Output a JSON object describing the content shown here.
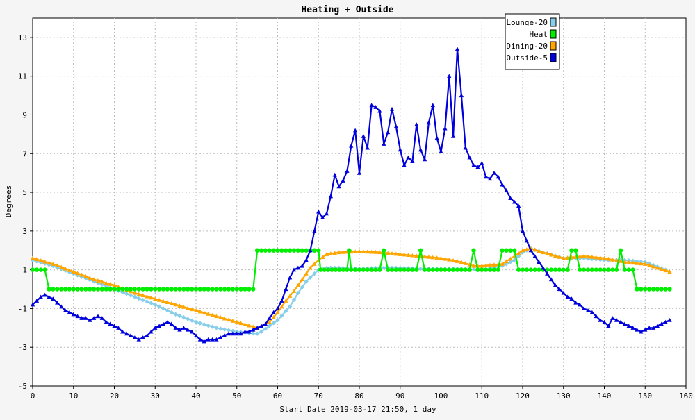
{
  "chart_data": {
    "type": "line",
    "title": "Heating + Outside",
    "xlabel": "Start Date 2019-03-17 21:50, 1 day",
    "ylabel": "Degrees",
    "xlim": [
      0,
      160
    ],
    "ylim": [
      -5,
      14
    ],
    "x_ticks": [
      0,
      10,
      20,
      30,
      40,
      50,
      60,
      70,
      80,
      90,
      100,
      110,
      120,
      130,
      140,
      150,
      160
    ],
    "y_ticks": [
      -5,
      -3,
      -1,
      1,
      3,
      5,
      7,
      9,
      11,
      13
    ],
    "grid": true,
    "legend_position": "top-right",
    "series": [
      {
        "name": "Lounge-20",
        "color": "#87ceeb",
        "marker": "diamond",
        "points": [
          [
            0,
            1.5
          ],
          [
            5,
            1.2
          ],
          [
            10,
            0.8
          ],
          [
            15,
            0.4
          ],
          [
            20,
            0
          ],
          [
            25,
            -0.4
          ],
          [
            30,
            -0.8
          ],
          [
            35,
            -1.3
          ],
          [
            40,
            -1.7
          ],
          [
            45,
            -2
          ],
          [
            50,
            -2.2
          ],
          [
            55,
            -2.3
          ],
          [
            56,
            -2.2
          ],
          [
            60,
            -1.6
          ],
          [
            63,
            -0.9
          ],
          [
            65,
            -0.2
          ],
          [
            67,
            0.4
          ],
          [
            69,
            0.8
          ],
          [
            70,
            1
          ],
          [
            72,
            1.1
          ],
          [
            75,
            1.1
          ],
          [
            80,
            1.05
          ],
          [
            85,
            1.1
          ],
          [
            90,
            1.1
          ],
          [
            95,
            1.05
          ],
          [
            100,
            1.05
          ],
          [
            105,
            1.05
          ],
          [
            110,
            1
          ],
          [
            115,
            1.2
          ],
          [
            118,
            1.5
          ],
          [
            120,
            1.9
          ],
          [
            122,
            2.1
          ],
          [
            125,
            1.9
          ],
          [
            130,
            1.6
          ],
          [
            135,
            1.6
          ],
          [
            140,
            1.5
          ],
          [
            145,
            1.5
          ],
          [
            150,
            1.4
          ],
          [
            155,
            1
          ]
        ]
      },
      {
        "name": "Heat",
        "color": "#00ee00",
        "marker": "circle",
        "points": [
          [
            0,
            1
          ],
          [
            3,
            1
          ],
          [
            4,
            0
          ],
          [
            54,
            0
          ],
          [
            55,
            2
          ],
          [
            70,
            2
          ],
          [
            70.5,
            1
          ],
          [
            77,
            1
          ],
          [
            77.5,
            2
          ],
          [
            78,
            1
          ],
          [
            85,
            1
          ],
          [
            86,
            2
          ],
          [
            87,
            1
          ],
          [
            94,
            1
          ],
          [
            95,
            2
          ],
          [
            96,
            1
          ],
          [
            107,
            1
          ],
          [
            108,
            2
          ],
          [
            109,
            1
          ],
          [
            114,
            1
          ],
          [
            115,
            2
          ],
          [
            118,
            2
          ],
          [
            119,
            1
          ],
          [
            131,
            1
          ],
          [
            132,
            2
          ],
          [
            133,
            2
          ],
          [
            134,
            1
          ],
          [
            143,
            1
          ],
          [
            144,
            2
          ],
          [
            145,
            1
          ],
          [
            147,
            1
          ],
          [
            148,
            0
          ],
          [
            156,
            0
          ]
        ]
      },
      {
        "name": "Dining-20",
        "color": "#ffa500",
        "marker": "triangle",
        "points": [
          [
            0,
            1.6
          ],
          [
            5,
            1.3
          ],
          [
            10,
            0.9
          ],
          [
            15,
            0.5
          ],
          [
            20,
            0.2
          ],
          [
            25,
            -0.2
          ],
          [
            30,
            -0.5
          ],
          [
            35,
            -0.8
          ],
          [
            40,
            -1.1
          ],
          [
            45,
            -1.4
          ],
          [
            50,
            -1.7
          ],
          [
            55,
            -2
          ],
          [
            58,
            -1.7
          ],
          [
            60,
            -1.2
          ],
          [
            62,
            -0.6
          ],
          [
            64,
            -0.1
          ],
          [
            66,
            0.5
          ],
          [
            68,
            1.1
          ],
          [
            70,
            1.5
          ],
          [
            72,
            1.8
          ],
          [
            75,
            1.9
          ],
          [
            80,
            1.95
          ],
          [
            85,
            1.9
          ],
          [
            90,
            1.8
          ],
          [
            95,
            1.7
          ],
          [
            100,
            1.6
          ],
          [
            105,
            1.4
          ],
          [
            108,
            1.2
          ],
          [
            110,
            1.2
          ],
          [
            115,
            1.3
          ],
          [
            118,
            1.7
          ],
          [
            120,
            2
          ],
          [
            122,
            2.1
          ],
          [
            125,
            1.9
          ],
          [
            130,
            1.6
          ],
          [
            135,
            1.7
          ],
          [
            140,
            1.6
          ],
          [
            145,
            1.4
          ],
          [
            150,
            1.3
          ],
          [
            156,
            0.9
          ]
        ]
      },
      {
        "name": "Outside-5",
        "color": "#0000dd",
        "marker": "triangle",
        "points": [
          [
            0,
            -0.8
          ],
          [
            1,
            -0.6
          ],
          [
            2,
            -0.4
          ],
          [
            3,
            -0.3
          ],
          [
            4,
            -0.4
          ],
          [
            5,
            -0.5
          ],
          [
            6,
            -0.7
          ],
          [
            7,
            -0.9
          ],
          [
            8,
            -1.1
          ],
          [
            9,
            -1.2
          ],
          [
            10,
            -1.3
          ],
          [
            11,
            -1.4
          ],
          [
            12,
            -1.5
          ],
          [
            13,
            -1.5
          ],
          [
            14,
            -1.6
          ],
          [
            15,
            -1.5
          ],
          [
            16,
            -1.4
          ],
          [
            17,
            -1.5
          ],
          [
            18,
            -1.7
          ],
          [
            19,
            -1.8
          ],
          [
            20,
            -1.9
          ],
          [
            21,
            -2
          ],
          [
            22,
            -2.2
          ],
          [
            23,
            -2.3
          ],
          [
            24,
            -2.4
          ],
          [
            25,
            -2.5
          ],
          [
            26,
            -2.6
          ],
          [
            27,
            -2.5
          ],
          [
            28,
            -2.4
          ],
          [
            29,
            -2.2
          ],
          [
            30,
            -2
          ],
          [
            31,
            -1.9
          ],
          [
            32,
            -1.8
          ],
          [
            33,
            -1.7
          ],
          [
            34,
            -1.8
          ],
          [
            35,
            -2
          ],
          [
            36,
            -2.1
          ],
          [
            37,
            -2
          ],
          [
            38,
            -2.1
          ],
          [
            39,
            -2.2
          ],
          [
            40,
            -2.4
          ],
          [
            41,
            -2.6
          ],
          [
            42,
            -2.7
          ],
          [
            43,
            -2.6
          ],
          [
            44,
            -2.6
          ],
          [
            45,
            -2.6
          ],
          [
            46,
            -2.5
          ],
          [
            47,
            -2.4
          ],
          [
            48,
            -2.3
          ],
          [
            49,
            -2.3
          ],
          [
            50,
            -2.3
          ],
          [
            51,
            -2.3
          ],
          [
            52,
            -2.2
          ],
          [
            53,
            -2.2
          ],
          [
            54,
            -2.1
          ],
          [
            55,
            -2
          ],
          [
            56,
            -1.9
          ],
          [
            57,
            -1.8
          ],
          [
            58,
            -1.5
          ],
          [
            59,
            -1.2
          ],
          [
            60,
            -1
          ],
          [
            61,
            -0.6
          ],
          [
            62,
            0
          ],
          [
            63,
            0.6
          ],
          [
            64,
            1
          ],
          [
            65,
            1.1
          ],
          [
            66,
            1.2
          ],
          [
            67,
            1.5
          ],
          [
            68,
            2
          ],
          [
            69,
            3
          ],
          [
            70,
            4
          ],
          [
            71,
            3.7
          ],
          [
            72,
            3.9
          ],
          [
            73,
            4.8
          ],
          [
            74,
            5.9
          ],
          [
            75,
            5.3
          ],
          [
            76,
            5.6
          ],
          [
            77,
            6.1
          ],
          [
            78,
            7.4
          ],
          [
            79,
            8.2
          ],
          [
            80,
            6
          ],
          [
            81,
            7.9
          ],
          [
            82,
            7.3
          ],
          [
            83,
            9.5
          ],
          [
            84,
            9.4
          ],
          [
            85,
            9.2
          ],
          [
            86,
            7.5
          ],
          [
            87,
            8.1
          ],
          [
            88,
            9.3
          ],
          [
            89,
            8.4
          ],
          [
            90,
            7.2
          ],
          [
            91,
            6.4
          ],
          [
            92,
            6.8
          ],
          [
            93,
            6.6
          ],
          [
            94,
            8.5
          ],
          [
            95,
            7.2
          ],
          [
            96,
            6.7
          ],
          [
            97,
            8.6
          ],
          [
            98,
            9.5
          ],
          [
            99,
            7.8
          ],
          [
            100,
            7.1
          ],
          [
            101,
            8.3
          ],
          [
            102,
            11
          ],
          [
            103,
            7.9
          ],
          [
            104,
            12.4
          ],
          [
            105,
            10
          ],
          [
            106,
            7.3
          ],
          [
            107,
            6.8
          ],
          [
            108,
            6.4
          ],
          [
            109,
            6.3
          ],
          [
            110,
            6.5
          ],
          [
            111,
            5.8
          ],
          [
            112,
            5.7
          ],
          [
            113,
            6
          ],
          [
            114,
            5.8
          ],
          [
            115,
            5.4
          ],
          [
            116,
            5.1
          ],
          [
            117,
            4.7
          ],
          [
            118,
            4.5
          ],
          [
            119,
            4.3
          ],
          [
            120,
            3
          ],
          [
            121,
            2.5
          ],
          [
            122,
            2
          ],
          [
            123,
            1.7
          ],
          [
            124,
            1.4
          ],
          [
            125,
            1.1
          ],
          [
            126,
            0.8
          ],
          [
            127,
            0.5
          ],
          [
            128,
            0.2
          ],
          [
            129,
            0
          ],
          [
            130,
            -0.2
          ],
          [
            131,
            -0.4
          ],
          [
            132,
            -0.5
          ],
          [
            133,
            -0.7
          ],
          [
            134,
            -0.8
          ],
          [
            135,
            -1
          ],
          [
            136,
            -1.1
          ],
          [
            137,
            -1.2
          ],
          [
            138,
            -1.4
          ],
          [
            139,
            -1.6
          ],
          [
            140,
            -1.7
          ],
          [
            141,
            -1.9
          ],
          [
            142,
            -1.5
          ],
          [
            143,
            -1.6
          ],
          [
            144,
            -1.7
          ],
          [
            145,
            -1.8
          ],
          [
            146,
            -1.9
          ],
          [
            147,
            -2
          ],
          [
            148,
            -2.1
          ],
          [
            149,
            -2.2
          ],
          [
            150,
            -2.1
          ],
          [
            151,
            -2
          ],
          [
            152,
            -2
          ],
          [
            153,
            -1.9
          ],
          [
            154,
            -1.8
          ],
          [
            155,
            -1.7
          ],
          [
            156,
            -1.6
          ]
        ]
      }
    ]
  }
}
